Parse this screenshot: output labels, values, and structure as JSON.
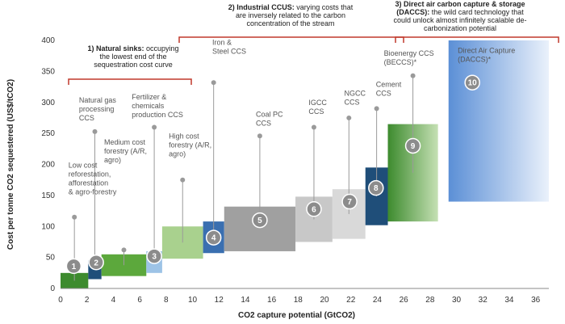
{
  "chart_data": {
    "type": "bar",
    "subtype": "cost-supply-curve",
    "title": "",
    "xlabel": "CO2 capture potential (GtCO2)",
    "ylabel": "Cost per tonne CO2 sequestered (US$/tCO2)",
    "xlim": [
      0,
      37
    ],
    "ylim": [
      0,
      400
    ],
    "xticks": [
      0,
      2,
      4,
      6,
      8,
      10,
      12,
      14,
      16,
      18,
      20,
      22,
      24,
      26,
      28,
      30,
      32,
      34,
      36
    ],
    "yticks": [
      0,
      50,
      100,
      150,
      200,
      250,
      300,
      350,
      400
    ],
    "grid": false,
    "segments": [
      {
        "id": 1,
        "label": "Low cost reforestation, afforestation & agro-forestry",
        "x0": 0,
        "x1": 2.1,
        "y0": 0,
        "y1": 25,
        "marker_y": 115,
        "color": "#3d8b2e"
      },
      {
        "id": 2,
        "label": "Natural gas processing CCS",
        "x0": 2.1,
        "x1": 3.1,
        "y0": 15,
        "y1": 45,
        "marker_y": 253,
        "color": "#1f4e79"
      },
      {
        "id": 3,
        "label": "Medium cost forestry (A/R, agro)",
        "x0": 3.1,
        "x1": 6.5,
        "y0": 20,
        "y1": 55,
        "marker_y": 62,
        "color": "#5ca83c"
      },
      {
        "id": 4,
        "label": "Fertilizer & chemicals production CCS",
        "x0": 6.5,
        "x1": 7.7,
        "y0": 25,
        "y1": 60,
        "marker_y": 260,
        "color": "#9dc3e6"
      },
      {
        "id": 5,
        "label": "High cost forestry (A/R, agro)",
        "x0": 7.7,
        "x1": 10.8,
        "y0": 48,
        "y1": 100,
        "marker_y": 175,
        "color": "#a9d18e"
      },
      {
        "id": 6,
        "label": "Iron & Steel CCS",
        "x0": 10.8,
        "x1": 12.4,
        "y0": 57,
        "y1": 108,
        "marker_y": 332,
        "color": "#3a6fb0"
      },
      {
        "id": 7,
        "label": "Coal PC CCS",
        "x0": 12.4,
        "x1": 17.8,
        "y0": 60,
        "y1": 132,
        "marker_y": 246,
        "color": "#a0a0a0"
      },
      {
        "id": 8,
        "label": "IGCC CCS",
        "x0": 17.8,
        "x1": 20.6,
        "y0": 75,
        "y1": 148,
        "marker_y": 260,
        "color": "#c8c8c8"
      },
      {
        "id": 9,
        "label": "NGCC CCS",
        "x0": 20.6,
        "x1": 23.1,
        "y0": 80,
        "y1": 160,
        "marker_y": 275,
        "color": "#d9d9d9"
      },
      {
        "id": 10,
        "label": "Cement CCS",
        "x0": 23.1,
        "x1": 24.8,
        "y0": 102,
        "y1": 195,
        "marker_y": 290,
        "color": "#1f4e79"
      },
      {
        "id": 11,
        "label": "Bioenergy CCS (BECCS)*",
        "x0": 24.8,
        "x1": 28.6,
        "y0": 108,
        "y1": 265,
        "marker_y": 343,
        "color": "#70ad47"
      },
      {
        "id": 12,
        "label": "Direct Air Capture (DACCS)*",
        "x0": 29.4,
        "x1": 37,
        "y0": 140,
        "y1": 400,
        "marker_y": null,
        "color": "#5b8fd6"
      }
    ],
    "markers": [
      {
        "num": "1",
        "x": 1,
        "y": 36,
        "color": "#8c8c8c"
      },
      {
        "num": "2",
        "x": 2.7,
        "y": 42,
        "color": "#8c8c8c"
      },
      {
        "num": "3",
        "x": 7.1,
        "y": 52,
        "color": "#8c8c8c"
      },
      {
        "num": "4",
        "x": 11.6,
        "y": 82,
        "color": "#8c8c8c"
      },
      {
        "num": "5",
        "x": 15.1,
        "y": 110,
        "color": "#8c8c8c"
      },
      {
        "num": "6",
        "x": 19.2,
        "y": 128,
        "color": "#8c8c8c"
      },
      {
        "num": "7",
        "x": 21.9,
        "y": 140,
        "color": "#8c8c8c"
      },
      {
        "num": "8",
        "x": 23.9,
        "y": 162,
        "color": "#8c8c8c"
      },
      {
        "num": "9",
        "x": 26.7,
        "y": 230,
        "color": "#8c8c8c"
      },
      {
        "num": "10",
        "x": 31.2,
        "y": 332,
        "color": "#8c8c8c"
      }
    ],
    "category_labels": [
      {
        "lines": [
          "Low cost",
          "reforestation,",
          "afforestation",
          "& agro-forestry"
        ],
        "x": 0.6,
        "y": 195
      },
      {
        "lines": [
          "Natural gas",
          "processing",
          "CCS"
        ],
        "x": 1.4,
        "y": 300
      },
      {
        "lines": [
          "Medium cost",
          "forestry (A/R,",
          "agro)"
        ],
        "x": 3.3,
        "y": 232
      },
      {
        "lines": [
          "Fertilizer &",
          "chemicals",
          "production CCS"
        ],
        "x": 5.4,
        "y": 305
      },
      {
        "lines": [
          "High cost",
          "forestry (A/R,",
          "agro)"
        ],
        "x": 8.2,
        "y": 242
      },
      {
        "lines": [
          "Iron &",
          "Steel CCS"
        ],
        "x": 11.5,
        "y": 393
      },
      {
        "lines": [
          "Coal PC",
          "CCS"
        ],
        "x": 14.8,
        "y": 277
      },
      {
        "lines": [
          "IGCC",
          "CCS"
        ],
        "x": 18.8,
        "y": 296
      },
      {
        "lines": [
          "NGCC",
          "CCS"
        ],
        "x": 21.5,
        "y": 311
      },
      {
        "lines": [
          "Cement",
          "CCS"
        ],
        "x": 23.9,
        "y": 325
      },
      {
        "lines": [
          "Bioenergy CCS",
          "(BECCS)*"
        ],
        "x": 24.5,
        "y": 375
      },
      {
        "lines": [
          "Direct Air Capture",
          "(DACCS)*"
        ],
        "x": 30.1,
        "y": 380
      }
    ],
    "annotations": [
      {
        "id": "natural-sinks",
        "bold": "1) Natural sinks:",
        "text": " occupying",
        "rest": [
          "the lowest end of the",
          "sequestration cost curve"
        ]
      },
      {
        "id": "industrial-ccus",
        "bold": "2) Industrial CCUS:",
        "text": " varying costs that",
        "rest": [
          "are inversely related to the carbon",
          "concentration of the stream"
        ]
      },
      {
        "id": "daccs",
        "bold": "3) Direct air carbon capture & storage",
        "text": "",
        "rest": [
          "(DACCS): the wild card technology that",
          "could unlock almost infinitely scalable de-",
          "carbonization potential"
        ]
      }
    ]
  }
}
